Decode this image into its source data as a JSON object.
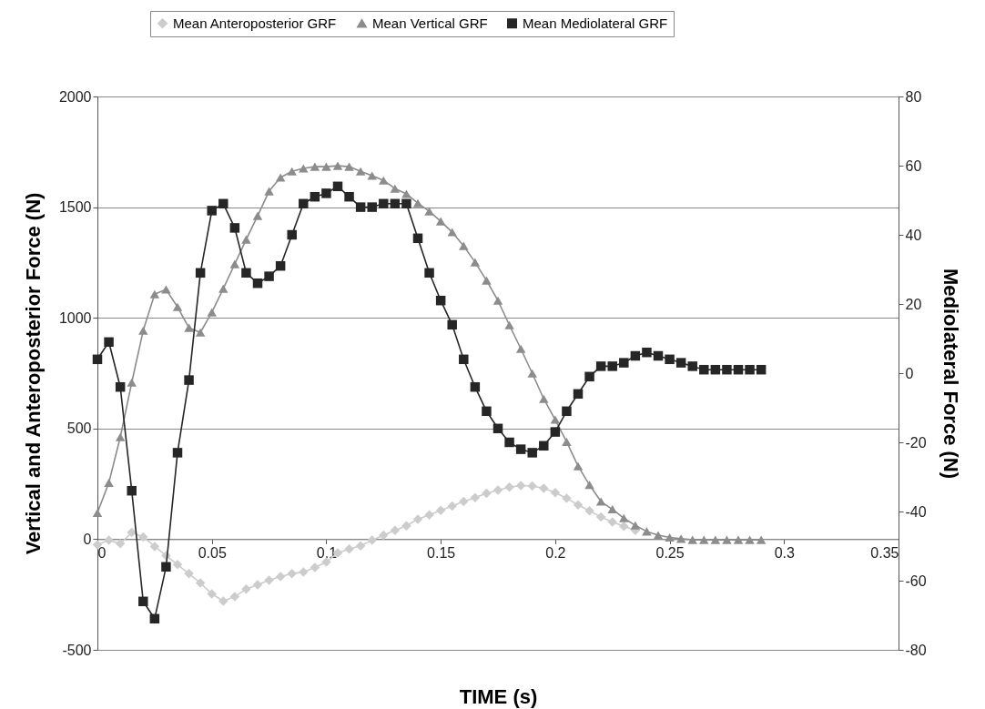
{
  "chart_data": {
    "type": "line",
    "xlabel": "TIME (s)",
    "ylabel": "Vertical and Anteroposterior Force (N)",
    "y2label": "Mediolateral Force (N)",
    "x": [
      0,
      0.005,
      0.01,
      0.015,
      0.02,
      0.025,
      0.03,
      0.035,
      0.04,
      0.045,
      0.05,
      0.055,
      0.06,
      0.065,
      0.07,
      0.075,
      0.08,
      0.085,
      0.09,
      0.095,
      0.1,
      0.105,
      0.11,
      0.115,
      0.12,
      0.125,
      0.13,
      0.135,
      0.14,
      0.145,
      0.15,
      0.155,
      0.16,
      0.165,
      0.17,
      0.175,
      0.18,
      0.185,
      0.19,
      0.195,
      0.2,
      0.205,
      0.21,
      0.215,
      0.22,
      0.225,
      0.23,
      0.235,
      0.24,
      0.245,
      0.25,
      0.255,
      0.26,
      0.265,
      0.27,
      0.275,
      0.28,
      0.285,
      0.29
    ],
    "series": [
      {
        "name": "Mean Anteroposterior GRF",
        "color": "#cccccc",
        "marker": "diamond",
        "values": [
          -25,
          -5,
          -20,
          30,
          10,
          -33,
          -74,
          -115,
          -156,
          -198,
          -247,
          -280,
          -259,
          -226,
          -206,
          -185,
          -169,
          -156,
          -148,
          -128,
          -103,
          -62,
          -45,
          -30,
          -5,
          18,
          40,
          60,
          90,
          110,
          130,
          150,
          170,
          188,
          207,
          222,
          235,
          242,
          240,
          230,
          210,
          185,
          155,
          128,
          100,
          78,
          58,
          40,
          null,
          null,
          null,
          null,
          null,
          null,
          null,
          null,
          null,
          null,
          null
        ]
      },
      {
        "name": "Mean Vertical GRF",
        "color": "#8c8c8c",
        "marker": "triangle",
        "values": [
          119,
          255,
          461,
          708,
          942,
          1107,
          1128,
          1049,
          955,
          934,
          1025,
          1132,
          1243,
          1354,
          1461,
          1572,
          1634,
          1662,
          1675,
          1683,
          1683,
          1687,
          1683,
          1662,
          1642,
          1621,
          1584,
          1560,
          1518,
          1481,
          1436,
          1387,
          1325,
          1251,
          1169,
          1078,
          967,
          860,
          749,
          634,
          540,
          440,
          330,
          245,
          170,
          135,
          95,
          62,
          35,
          18,
          8,
          2,
          -3,
          -3,
          -3,
          -3,
          -3,
          -3,
          -3
        ]
      },
      {
        "name": "Mean Mediolateral GRF",
        "color": "#262626",
        "marker": "square",
        "axis": "y2",
        "values": [
          4,
          9,
          -4,
          -34,
          -66,
          -71,
          -56,
          -23,
          -2,
          29,
          47,
          49,
          42,
          29,
          26,
          28,
          31,
          40,
          49,
          51,
          52,
          54,
          51,
          48,
          48,
          49,
          49,
          49,
          39,
          29,
          21,
          14,
          4,
          -4,
          -11,
          -16,
          -20,
          -22,
          -23,
          -21,
          -17,
          -11,
          -6,
          -1,
          2,
          2,
          3,
          5,
          6,
          5,
          4,
          3,
          2,
          1,
          1,
          1,
          1,
          1,
          1
        ]
      }
    ],
    "xlim": [
      0,
      0.35
    ],
    "xticks": [
      0,
      0.05,
      0.1,
      0.15,
      0.2,
      0.25,
      0.3,
      0.35
    ],
    "ylim": [
      -500,
      2000
    ],
    "yticks": [
      -500,
      0,
      500,
      1000,
      1500,
      2000
    ],
    "y2lim": [
      -80,
      80
    ],
    "y2ticks": [
      -80,
      -60,
      -40,
      -20,
      0,
      20,
      40,
      60,
      80
    ],
    "grid": "y",
    "legend": "top"
  }
}
